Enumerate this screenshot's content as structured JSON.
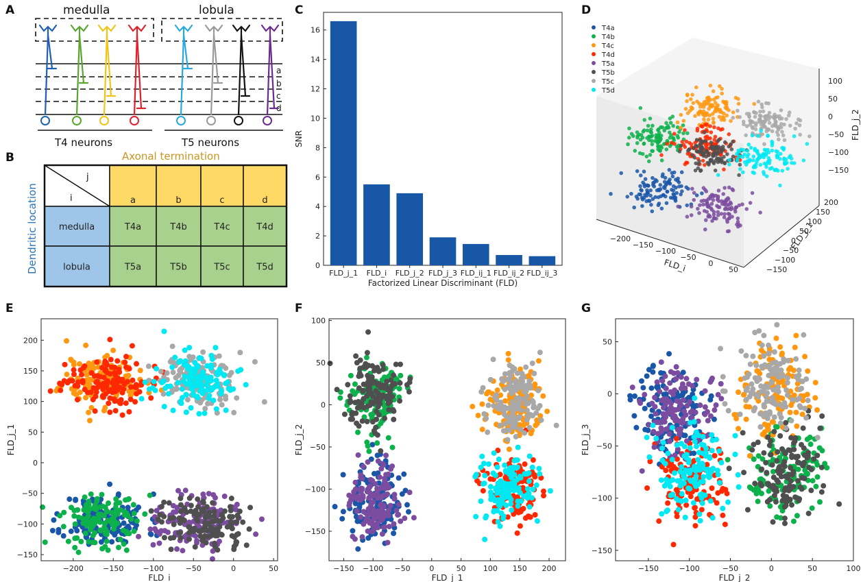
{
  "panels": {
    "A": {
      "label": "A",
      "region_medulla": "medulla",
      "region_lobula": "lobula",
      "layers": [
        "a",
        "b",
        "c",
        "d"
      ],
      "group_t4": "T4 neurons",
      "group_t5": "T5 neurons",
      "neuron_colors": {
        "t4": [
          "#1f5fb4",
          "#5aa52f",
          "#f3c318",
          "#e0202b"
        ],
        "t5": [
          "#29a8e0",
          "#999999",
          "#111111",
          "#6a2a8f"
        ]
      }
    },
    "B": {
      "label": "B",
      "col_header": "Axonal termination",
      "row_header": "Dendritic location",
      "corner_j": "j",
      "corner_i": "i",
      "cols": [
        "a",
        "b",
        "c",
        "d"
      ],
      "rows": [
        {
          "name": "medulla",
          "cells": [
            "T4a",
            "T4b",
            "T4c",
            "T4d"
          ]
        },
        {
          "name": "lobula",
          "cells": [
            "T5a",
            "T5b",
            "T5c",
            "T5d"
          ]
        }
      ],
      "colors": {
        "header": "#ffd966",
        "row": "#9fc5e8",
        "cell": "#a9d18e",
        "col_header_text": "#c9951c",
        "row_header_text": "#2e75b6"
      }
    },
    "C": {
      "label": "C"
    },
    "D": {
      "label": "D"
    },
    "E": {
      "label": "E"
    },
    "F": {
      "label": "F"
    },
    "G": {
      "label": "G"
    }
  },
  "chart_data": [
    {
      "id": "C",
      "type": "bar",
      "categories": [
        "FLD_j_1",
        "FLD_i",
        "FLD_j_2",
        "FLD_j_3",
        "FLD_ij_1",
        "FLD_ij_2",
        "FLD_ij_3"
      ],
      "values": [
        16.6,
        5.5,
        4.9,
        1.9,
        1.45,
        0.7,
        0.62
      ],
      "title": "",
      "xlabel": "Factorized Linear Discriminant (FLD)",
      "ylabel": "SNR",
      "ylim": [
        0,
        17.2
      ],
      "yticks": [
        0,
        2,
        4,
        6,
        8,
        10,
        12,
        14,
        16
      ],
      "color": "#1757a6"
    },
    {
      "id": "D",
      "type": "scatter",
      "dims": 3,
      "legend": [
        "T4a",
        "T4b",
        "T4c",
        "T4d",
        "T5a",
        "T5b",
        "T5c",
        "T5d"
      ],
      "legend_position": "top-left",
      "xlabel": "FLD_i",
      "ylabel": "FLD_j_1",
      "zlabel": "FLD_j_2",
      "xticks": [
        "−200",
        "−150",
        "−100",
        "−50",
        "0",
        "50"
      ],
      "yticks": [
        "−150",
        "−100",
        "−50",
        "0",
        "50",
        "100",
        "150",
        "200"
      ],
      "zticks": [
        "100",
        "50",
        "0",
        "−50",
        "−100",
        "−150"
      ]
    },
    {
      "id": "E",
      "type": "scatter",
      "xlabel": "FLD_i",
      "ylabel": "FLD_j_1",
      "xlim": [
        -240,
        55
      ],
      "ylim": [
        -160,
        235
      ],
      "xticks": [
        -200,
        -150,
        -100,
        -50,
        0,
        50
      ],
      "yticks": [
        -150,
        -100,
        -50,
        0,
        50,
        100,
        150,
        200
      ],
      "clusters": [
        {
          "label": "T4a",
          "x": -160,
          "y": -95
        },
        {
          "label": "T4b",
          "x": -165,
          "y": -92
        },
        {
          "label": "T4c",
          "x": -162,
          "y": 135
        },
        {
          "label": "T4d",
          "x": -160,
          "y": 133
        },
        {
          "label": "T5a",
          "x": -45,
          "y": -95
        },
        {
          "label": "T5b",
          "x": -40,
          "y": -97
        },
        {
          "label": "T5c",
          "x": -40,
          "y": 135
        },
        {
          "label": "T5d",
          "x": -45,
          "y": 132
        }
      ]
    },
    {
      "id": "F",
      "type": "scatter",
      "xlabel": "FLD_j_1",
      "ylabel": "FLD_j_2",
      "xlim": [
        -175,
        228
      ],
      "ylim": [
        -185,
        102
      ],
      "xticks": [
        -150,
        -100,
        -50,
        0,
        50,
        100,
        150,
        200
      ],
      "yticks": [
        -150,
        -100,
        -50,
        0,
        50,
        100
      ],
      "clusters": [
        {
          "label": "T4a",
          "x": -100,
          "y": -115
        },
        {
          "label": "T4b",
          "x": -95,
          "y": 10
        },
        {
          "label": "T4c",
          "x": 140,
          "y": 0
        },
        {
          "label": "T4d",
          "x": 135,
          "y": -100
        },
        {
          "label": "T5a",
          "x": -100,
          "y": -118
        },
        {
          "label": "T5b",
          "x": -98,
          "y": 15
        },
        {
          "label": "T5c",
          "x": 140,
          "y": 5
        },
        {
          "label": "T5d",
          "x": 135,
          "y": -100
        }
      ]
    },
    {
      "id": "G",
      "type": "scatter",
      "xlabel": "FLD_j_2",
      "ylabel": "FLD_j_3",
      "xlim": [
        -190,
        100
      ],
      "ylim": [
        -160,
        72
      ],
      "xticks": [
        -150,
        -100,
        -50,
        0,
        50,
        100
      ],
      "yticks": [
        -150,
        -100,
        -50,
        0,
        50
      ],
      "clusters": [
        {
          "label": "T4a",
          "x": -120,
          "y": -15
        },
        {
          "label": "T4b",
          "x": 15,
          "y": -72
        },
        {
          "label": "T4c",
          "x": 5,
          "y": 5
        },
        {
          "label": "T4d",
          "x": -95,
          "y": -80
        },
        {
          "label": "T5a",
          "x": -115,
          "y": -20
        },
        {
          "label": "T5b",
          "x": 20,
          "y": -75
        },
        {
          "label": "T5c",
          "x": 0,
          "y": 8
        },
        {
          "label": "T5d",
          "x": -100,
          "y": -78
        }
      ]
    }
  ],
  "series_colors": {
    "T4a": "#1a56a8",
    "T4b": "#0db14b",
    "T4c": "#ff9810",
    "T4d": "#ff2800",
    "T5a": "#7b4c9f",
    "T5b": "#4f4f4f",
    "T5c": "#a8a8a8",
    "T5d": "#00e9f2"
  }
}
